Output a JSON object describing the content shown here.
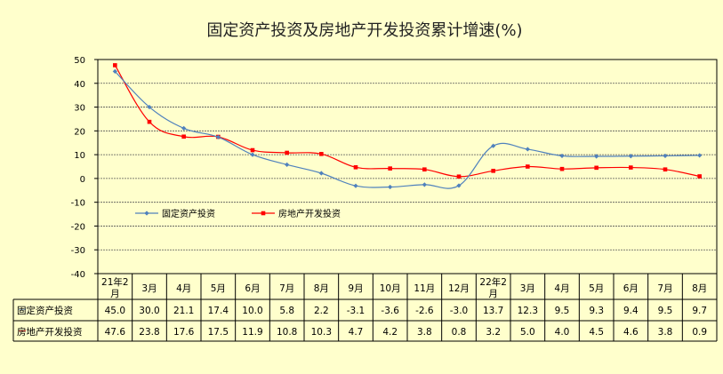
{
  "chart_data": {
    "type": "line",
    "title": "固定资产投资及房地产开发投资累计增速(%)",
    "categories": [
      "21年2月",
      "3月",
      "4月",
      "5月",
      "6月",
      "7月",
      "8月",
      "9月",
      "10月",
      "11月",
      "12月",
      "22年2月",
      "3月",
      "4月",
      "5月",
      "6月",
      "7月",
      "8月"
    ],
    "series": [
      {
        "name": "固定资产投资",
        "color": "#4F81BD",
        "marker": "diamond",
        "values": [
          45.0,
          30.0,
          21.1,
          17.4,
          10.0,
          5.8,
          2.2,
          -3.1,
          -3.6,
          -2.6,
          -3.0,
          13.7,
          12.3,
          9.5,
          9.3,
          9.4,
          9.5,
          9.7
        ],
        "labels": [
          "45.0",
          "30.0",
          "21.1",
          "17.4",
          "10.0",
          "5.8",
          "2.2",
          "-3.1",
          "-3.6",
          "-2.6",
          "-3.0",
          "13.7",
          "12.3",
          "9.5",
          "9.3",
          "9.4",
          "9.5",
          "9.7"
        ]
      },
      {
        "name": "房地产开发投资",
        "color": "#FF0000",
        "marker": "square",
        "values": [
          47.6,
          23.8,
          17.6,
          17.5,
          11.9,
          10.8,
          10.3,
          4.7,
          4.2,
          3.8,
          0.8,
          3.2,
          5.0,
          4.0,
          4.5,
          4.6,
          3.8,
          0.9
        ],
        "labels": [
          "47.6",
          "23.8",
          "17.6",
          "17.5",
          "11.9",
          "10.8",
          "10.3",
          "4.7",
          "4.2",
          "3.8",
          "0.8",
          "3.2",
          "5.0",
          "4.0",
          "4.5",
          "4.6",
          "3.8",
          "0.9"
        ]
      }
    ],
    "ylim": [
      -40,
      50
    ],
    "yticks": [
      "50",
      "40",
      "30",
      "20",
      "10",
      "0",
      "-10",
      "-20",
      "-30",
      "-40"
    ],
    "grid": true,
    "legend": "inside-lower-left",
    "table_below": true
  }
}
